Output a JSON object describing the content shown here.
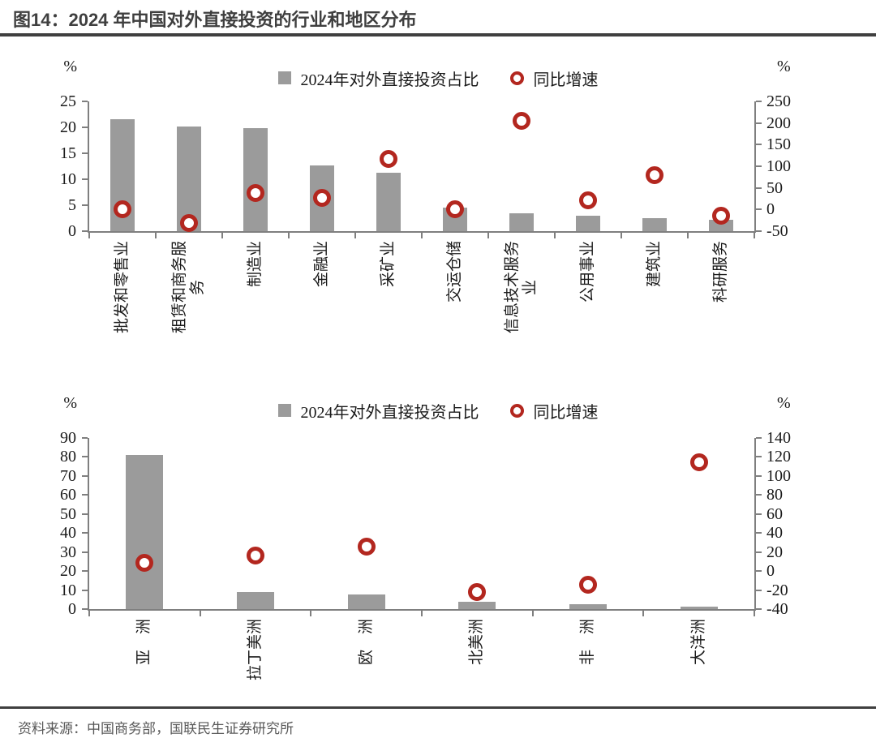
{
  "title": "图14：2024 年中国对外直接投资的行业和地区分布",
  "source": "资料来源：中国商务部，国联民生证券研究所",
  "legend": {
    "bar_label": "2024年对外直接投资占比",
    "marker_label": "同比增速"
  },
  "colors": {
    "bar": "#9b9b9b",
    "marker": "#b3271f",
    "marker_fill": "#ffffff",
    "axis": "#7f7f7f",
    "text": "#1a1a1a",
    "title": "#3f3f3f",
    "rule": "#3f3f3f",
    "source_text": "#595959"
  },
  "chart_data": [
    {
      "type": "bar",
      "subtype": "bar-plus-scatter-dual-axis",
      "title": "2024年中国对外直接投资的行业分布",
      "categories": [
        "批发和零售业",
        "租赁和商务服\n务",
        "制造业",
        "金融业",
        "采矿业",
        "交运仓储",
        "信息技术服务\n业",
        "公用事业",
        "建筑业",
        "科研服务"
      ],
      "series": [
        {
          "name": "2024年对外直接投资占比",
          "type": "bar",
          "axis": "left",
          "values": [
            21.5,
            20.2,
            19.9,
            12.6,
            11.3,
            4.5,
            3.5,
            3.0,
            2.5,
            2.2
          ]
        },
        {
          "name": "同比增速",
          "type": "scatter",
          "axis": "right",
          "values": [
            1,
            -32,
            38,
            27,
            117,
            0,
            205,
            22,
            79,
            -15
          ]
        }
      ],
      "left_axis": {
        "label": "%",
        "min": 0,
        "max": 25,
        "step": 5
      },
      "right_axis": {
        "label": "%",
        "min": -50,
        "max": 250,
        "step": 50
      },
      "legend_position": "top-center",
      "grid": false
    },
    {
      "type": "bar",
      "subtype": "bar-plus-scatter-dual-axis",
      "title": "2024年中国对外直接投资的地区分布",
      "categories": [
        "亚　洲",
        "拉丁美洲",
        "欧　洲",
        "北美洲",
        "非　洲",
        "大洋洲"
      ],
      "series": [
        {
          "name": "2024年对外直接投资占比",
          "type": "bar",
          "axis": "left",
          "values": [
            81,
            9,
            7.5,
            4,
            2.6,
            1.4
          ]
        },
        {
          "name": "同比增速",
          "type": "scatter",
          "axis": "right",
          "values": [
            9,
            16,
            26,
            -22,
            -14,
            114
          ]
        }
      ],
      "left_axis": {
        "label": "%",
        "min": 0,
        "max": 90,
        "step": 10
      },
      "right_axis": {
        "label": "%",
        "min": -40,
        "max": 140,
        "step": 20
      },
      "legend_position": "top-center",
      "grid": false
    }
  ]
}
